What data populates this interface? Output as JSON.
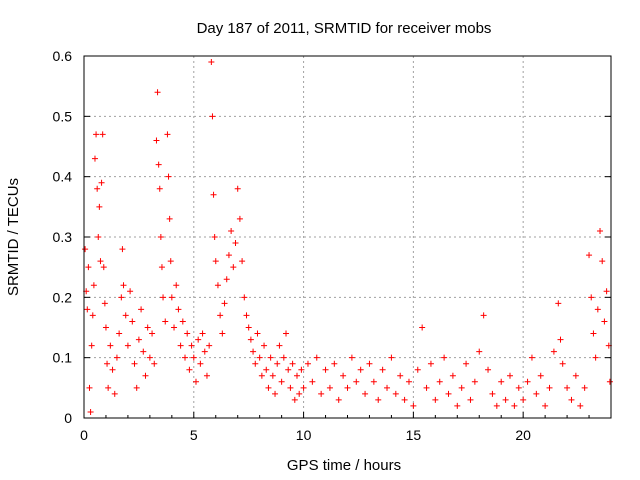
{
  "chart_data": {
    "type": "scatter",
    "title": "Day 187 of 2011, SRMTID for receiver mobs",
    "xlabel": "GPS time / hours",
    "ylabel": "SRMTID / TECUs",
    "xlim": [
      0,
      24
    ],
    "ylim": [
      0,
      0.6
    ],
    "x_ticks": [
      0,
      5,
      10,
      15,
      20
    ],
    "x_tick_labels": [
      "0",
      "5",
      "10",
      "15",
      "20"
    ],
    "y_ticks": [
      0,
      0.1,
      0.2,
      0.3,
      0.4,
      0.5,
      0.6
    ],
    "y_tick_labels": [
      "0",
      "0.1",
      "0.2",
      "0.3",
      "0.4",
      "0.5",
      "0.6"
    ],
    "grid": true,
    "marker": "+",
    "marker_color": "#ff0000",
    "series": [
      {
        "name": "SRMTID",
        "points": [
          [
            0.05,
            0.28
          ],
          [
            0.1,
            0.21
          ],
          [
            0.15,
            0.18
          ],
          [
            0.2,
            0.25
          ],
          [
            0.25,
            0.05
          ],
          [
            0.3,
            0.01
          ],
          [
            0.35,
            0.12
          ],
          [
            0.4,
            0.17
          ],
          [
            0.45,
            0.22
          ],
          [
            0.5,
            0.43
          ],
          [
            0.55,
            0.47
          ],
          [
            0.6,
            0.38
          ],
          [
            0.65,
            0.3
          ],
          [
            0.7,
            0.35
          ],
          [
            0.75,
            0.26
          ],
          [
            0.8,
            0.39
          ],
          [
            0.85,
            0.47
          ],
          [
            0.9,
            0.25
          ],
          [
            0.95,
            0.19
          ],
          [
            1.0,
            0.15
          ],
          [
            1.05,
            0.09
          ],
          [
            1.1,
            0.05
          ],
          [
            1.2,
            0.12
          ],
          [
            1.3,
            0.08
          ],
          [
            1.4,
            0.04
          ],
          [
            1.5,
            0.1
          ],
          [
            1.6,
            0.14
          ],
          [
            1.7,
            0.2
          ],
          [
            1.75,
            0.28
          ],
          [
            1.8,
            0.22
          ],
          [
            1.9,
            0.17
          ],
          [
            2.0,
            0.12
          ],
          [
            2.1,
            0.21
          ],
          [
            2.2,
            0.16
          ],
          [
            2.3,
            0.09
          ],
          [
            2.4,
            0.05
          ],
          [
            2.5,
            0.13
          ],
          [
            2.6,
            0.18
          ],
          [
            2.7,
            0.11
          ],
          [
            2.8,
            0.07
          ],
          [
            2.9,
            0.15
          ],
          [
            3.0,
            0.1
          ],
          [
            3.1,
            0.14
          ],
          [
            3.2,
            0.09
          ],
          [
            3.3,
            0.46
          ],
          [
            3.35,
            0.54
          ],
          [
            3.4,
            0.42
          ],
          [
            3.45,
            0.38
          ],
          [
            3.5,
            0.3
          ],
          [
            3.55,
            0.25
          ],
          [
            3.6,
            0.2
          ],
          [
            3.7,
            0.16
          ],
          [
            3.8,
            0.47
          ],
          [
            3.85,
            0.4
          ],
          [
            3.9,
            0.33
          ],
          [
            3.95,
            0.26
          ],
          [
            4.0,
            0.2
          ],
          [
            4.1,
            0.15
          ],
          [
            4.2,
            0.22
          ],
          [
            4.3,
            0.18
          ],
          [
            4.4,
            0.12
          ],
          [
            4.5,
            0.16
          ],
          [
            4.6,
            0.1
          ],
          [
            4.7,
            0.14
          ],
          [
            4.8,
            0.08
          ],
          [
            4.9,
            0.12
          ],
          [
            5.0,
            0.1
          ],
          [
            5.1,
            0.06
          ],
          [
            5.2,
            0.13
          ],
          [
            5.3,
            0.09
          ],
          [
            5.4,
            0.14
          ],
          [
            5.5,
            0.11
          ],
          [
            5.6,
            0.07
          ],
          [
            5.7,
            0.12
          ],
          [
            5.8,
            0.59
          ],
          [
            5.85,
            0.5
          ],
          [
            5.9,
            0.37
          ],
          [
            5.95,
            0.3
          ],
          [
            6.0,
            0.26
          ],
          [
            6.1,
            0.22
          ],
          [
            6.2,
            0.17
          ],
          [
            6.3,
            0.14
          ],
          [
            6.4,
            0.19
          ],
          [
            6.5,
            0.23
          ],
          [
            6.6,
            0.27
          ],
          [
            6.7,
            0.31
          ],
          [
            6.8,
            0.25
          ],
          [
            6.9,
            0.29
          ],
          [
            7.0,
            0.38
          ],
          [
            7.1,
            0.33
          ],
          [
            7.2,
            0.26
          ],
          [
            7.3,
            0.2
          ],
          [
            7.4,
            0.17
          ],
          [
            7.5,
            0.15
          ],
          [
            7.6,
            0.13
          ],
          [
            7.7,
            0.11
          ],
          [
            7.8,
            0.09
          ],
          [
            7.9,
            0.14
          ],
          [
            8.0,
            0.1
          ],
          [
            8.1,
            0.07
          ],
          [
            8.2,
            0.12
          ],
          [
            8.3,
            0.08
          ],
          [
            8.4,
            0.05
          ],
          [
            8.5,
            0.1
          ],
          [
            8.6,
            0.07
          ],
          [
            8.7,
            0.04
          ],
          [
            8.8,
            0.09
          ],
          [
            8.9,
            0.12
          ],
          [
            9.0,
            0.06
          ],
          [
            9.1,
            0.1
          ],
          [
            9.2,
            0.14
          ],
          [
            9.3,
            0.08
          ],
          [
            9.4,
            0.05
          ],
          [
            9.5,
            0.09
          ],
          [
            9.6,
            0.03
          ],
          [
            9.7,
            0.07
          ],
          [
            9.8,
            0.04
          ],
          [
            9.9,
            0.08
          ],
          [
            10.0,
            0.05
          ],
          [
            10.2,
            0.09
          ],
          [
            10.4,
            0.06
          ],
          [
            10.6,
            0.1
          ],
          [
            10.8,
            0.04
          ],
          [
            11.0,
            0.08
          ],
          [
            11.2,
            0.05
          ],
          [
            11.4,
            0.09
          ],
          [
            11.6,
            0.03
          ],
          [
            11.8,
            0.07
          ],
          [
            12.0,
            0.05
          ],
          [
            12.2,
            0.1
          ],
          [
            12.4,
            0.06
          ],
          [
            12.6,
            0.08
          ],
          [
            12.8,
            0.04
          ],
          [
            13.0,
            0.09
          ],
          [
            13.2,
            0.06
          ],
          [
            13.4,
            0.03
          ],
          [
            13.6,
            0.08
          ],
          [
            13.8,
            0.05
          ],
          [
            14.0,
            0.1
          ],
          [
            14.2,
            0.04
          ],
          [
            14.4,
            0.07
          ],
          [
            14.6,
            0.03
          ],
          [
            14.8,
            0.06
          ],
          [
            15.0,
            0.02
          ],
          [
            15.2,
            0.08
          ],
          [
            15.4,
            0.15
          ],
          [
            15.6,
            0.05
          ],
          [
            15.8,
            0.09
          ],
          [
            16.0,
            0.03
          ],
          [
            16.2,
            0.06
          ],
          [
            16.4,
            0.1
          ],
          [
            16.6,
            0.04
          ],
          [
            16.8,
            0.07
          ],
          [
            17.0,
            0.02
          ],
          [
            17.2,
            0.05
          ],
          [
            17.4,
            0.09
          ],
          [
            17.6,
            0.03
          ],
          [
            17.8,
            0.06
          ],
          [
            18.0,
            0.11
          ],
          [
            18.2,
            0.17
          ],
          [
            18.4,
            0.08
          ],
          [
            18.6,
            0.04
          ],
          [
            18.8,
            0.02
          ],
          [
            19.0,
            0.06
          ],
          [
            19.2,
            0.03
          ],
          [
            19.4,
            0.07
          ],
          [
            19.6,
            0.02
          ],
          [
            19.8,
            0.05
          ],
          [
            20.0,
            0.03
          ],
          [
            20.2,
            0.06
          ],
          [
            20.4,
            0.1
          ],
          [
            20.6,
            0.04
          ],
          [
            20.8,
            0.07
          ],
          [
            21.0,
            0.02
          ],
          [
            21.2,
            0.05
          ],
          [
            21.4,
            0.11
          ],
          [
            21.6,
            0.19
          ],
          [
            21.7,
            0.13
          ],
          [
            21.8,
            0.09
          ],
          [
            22.0,
            0.05
          ],
          [
            22.2,
            0.03
          ],
          [
            22.4,
            0.07
          ],
          [
            22.6,
            0.02
          ],
          [
            22.8,
            0.05
          ],
          [
            23.0,
            0.27
          ],
          [
            23.1,
            0.2
          ],
          [
            23.2,
            0.14
          ],
          [
            23.3,
            0.1
          ],
          [
            23.4,
            0.18
          ],
          [
            23.5,
            0.31
          ],
          [
            23.6,
            0.26
          ],
          [
            23.7,
            0.16
          ],
          [
            23.8,
            0.21
          ],
          [
            23.9,
            0.12
          ],
          [
            23.95,
            0.06
          ]
        ]
      }
    ]
  }
}
